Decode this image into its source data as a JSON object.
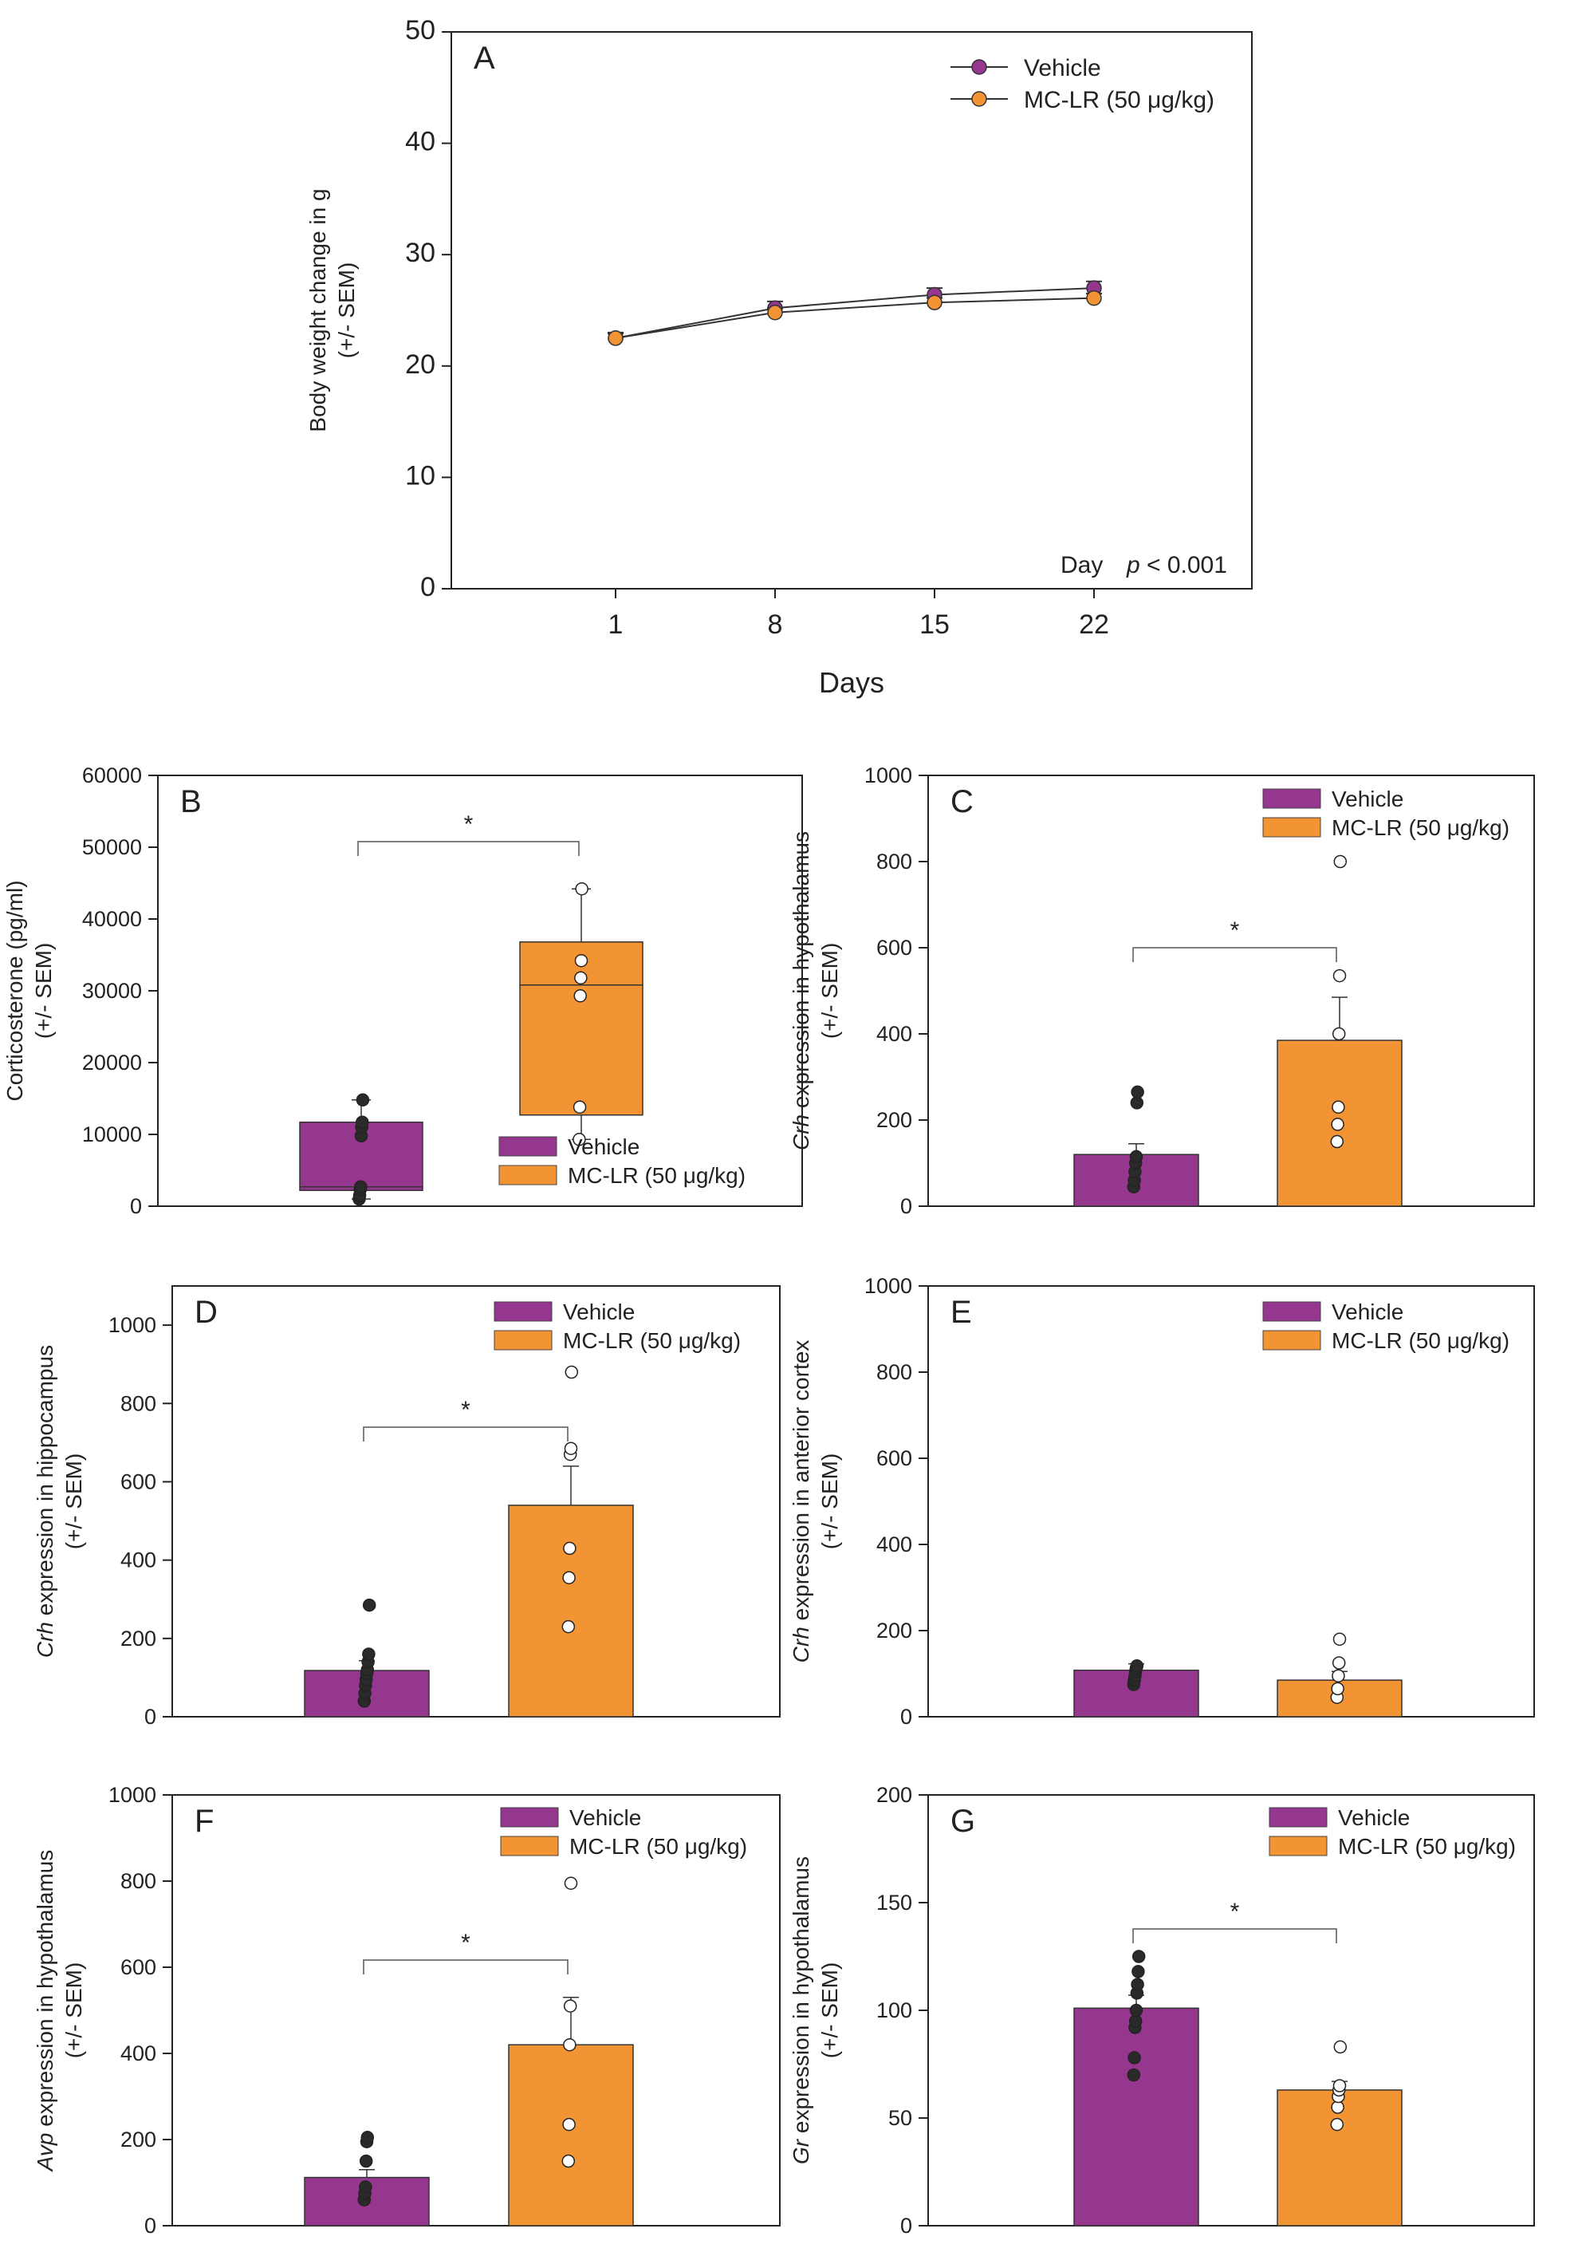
{
  "colors": {
    "vehicle": "#95368f",
    "mclr": "#f29434",
    "axis": "#222222",
    "filled_point": "#2a2a2a",
    "open_point_fill": "#ffffff"
  },
  "legend": {
    "vehicle": "Vehicle",
    "mclr": "MC-LR (50 μg/kg)"
  },
  "chart_data": [
    {
      "panel": "A",
      "type": "line",
      "xlabel": "Days",
      "ylabel_lines": [
        "Body weight change in g",
        "(+/- SEM)"
      ],
      "x": [
        "1",
        "8",
        "15",
        "22"
      ],
      "ylim": [
        0,
        50
      ],
      "yticks": [
        0,
        10,
        20,
        30,
        40,
        50
      ],
      "series": [
        {
          "name": "Vehicle",
          "values": [
            22.5,
            25.2,
            26.4,
            27.0
          ],
          "sem": [
            0.5,
            0.6,
            0.6,
            0.6
          ]
        },
        {
          "name": "MC-LR (50 μg/kg)",
          "values": [
            22.5,
            24.8,
            25.7,
            26.1
          ],
          "sem": [
            0.4,
            0.4,
            0.4,
            0.4
          ]
        }
      ],
      "stat": {
        "label": "Day",
        "p": "p",
        "value": "< 0.001"
      },
      "legend_position": "top-right"
    },
    {
      "panel": "B",
      "type": "box",
      "ylabel_lines": [
        "Corticosterone (pg/ml)",
        "(+/- SEM)"
      ],
      "ylim": [
        0,
        60000
      ],
      "yticks": [
        0,
        10000,
        20000,
        30000,
        40000,
        50000,
        60000
      ],
      "groups": [
        {
          "name": "Vehicle",
          "q1": 2200,
          "median": 2700,
          "q3": 11700,
          "whisker_low": 1000,
          "whisker_high": 14800,
          "points": [
            1000,
            1500,
            2300,
            2700,
            9800,
            11000,
            11700,
            14800
          ]
        },
        {
          "name": "MC-LR (50 μg/kg)",
          "q1": 12700,
          "median": 30800,
          "q3": 36800,
          "whisker_low": 9300,
          "whisker_high": 44200,
          "points": [
            9300,
            13800,
            29300,
            31800,
            34200,
            44200
          ]
        }
      ],
      "significance": "*",
      "legend_position": "bottom-right"
    },
    {
      "panel": "C",
      "type": "bar",
      "ylabel_italic": "Crh",
      "ylabel_rest": " expression in hypothalamus",
      "ylabel_line2": "(+/- SEM)",
      "ylim": [
        0,
        1000
      ],
      "yticks": [
        0,
        200,
        400,
        600,
        800,
        1000
      ],
      "groups": [
        {
          "name": "Vehicle",
          "mean": 120,
          "sem": 25,
          "points": [
            45,
            60,
            80,
            100,
            115,
            240,
            265
          ]
        },
        {
          "name": "MC-LR (50 μg/kg)",
          "mean": 385,
          "sem": 100,
          "points": [
            150,
            190,
            230,
            400,
            535,
            800
          ]
        }
      ],
      "significance": "*",
      "legend_position": "top-right"
    },
    {
      "panel": "D",
      "type": "bar",
      "ylabel_italic": "Crh",
      "ylabel_rest": " expression in hippocampus",
      "ylabel_line2": "(+/- SEM)",
      "ylim": [
        0,
        1100
      ],
      "yticks": [
        0,
        200,
        400,
        600,
        800,
        1000
      ],
      "groups": [
        {
          "name": "Vehicle",
          "mean": 118,
          "sem": 25,
          "points": [
            40,
            60,
            80,
            95,
            110,
            120,
            140,
            160,
            285
          ]
        },
        {
          "name": "MC-LR (50 μg/kg)",
          "mean": 540,
          "sem": 100,
          "points": [
            230,
            355,
            430,
            670,
            685,
            880
          ]
        }
      ],
      "significance": "*",
      "legend_position": "top-right"
    },
    {
      "panel": "E",
      "type": "bar",
      "ylabel_italic": "Crh",
      "ylabel_rest": " expression in anterior cortex",
      "ylabel_line2": "(+/- SEM)",
      "ylim": [
        0,
        1000
      ],
      "yticks": [
        0,
        200,
        400,
        600,
        800,
        1000
      ],
      "groups": [
        {
          "name": "Vehicle",
          "mean": 108,
          "sem": 15,
          "points": [
            75,
            85,
            95,
            105,
            112,
            118
          ]
        },
        {
          "name": "MC-LR (50 μg/kg)",
          "mean": 85,
          "sem": 20,
          "points": [
            45,
            65,
            95,
            125,
            180
          ]
        }
      ],
      "significance": "",
      "legend_position": "top-right"
    },
    {
      "panel": "F",
      "type": "bar",
      "ylabel_italic": "Avp",
      "ylabel_rest": " expression in hypothalamus",
      "ylabel_line2": "(+/- SEM)",
      "ylim": [
        0,
        1000
      ],
      "yticks": [
        0,
        200,
        400,
        600,
        800,
        1000
      ],
      "groups": [
        {
          "name": "Vehicle",
          "mean": 112,
          "sem": 18,
          "points": [
            60,
            75,
            90,
            150,
            195,
            205
          ]
        },
        {
          "name": "MC-LR (50 μg/kg)",
          "mean": 420,
          "sem": 110,
          "points": [
            150,
            235,
            420,
            510,
            795
          ]
        }
      ],
      "significance": "*",
      "legend_position": "top-right"
    },
    {
      "panel": "G",
      "type": "bar",
      "ylabel_italic": "Gr",
      "ylabel_rest": " expression in hypothalamus",
      "ylabel_line2": "(+/- SEM)",
      "ylim": [
        0,
        200
      ],
      "yticks": [
        0,
        50,
        100,
        150,
        200
      ],
      "groups": [
        {
          "name": "Vehicle",
          "mean": 101,
          "sem": 6,
          "points": [
            70,
            78,
            92,
            95,
            100,
            108,
            112,
            118,
            125
          ]
        },
        {
          "name": "MC-LR (50 μg/kg)",
          "mean": 63,
          "sem": 4,
          "points": [
            47,
            55,
            60,
            63,
            65,
            83
          ]
        }
      ],
      "significance": "*",
      "legend_position": "top-right"
    }
  ]
}
